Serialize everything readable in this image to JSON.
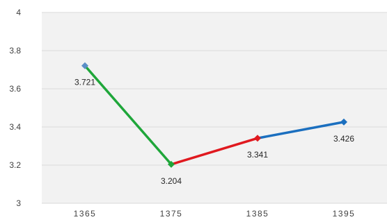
{
  "chart_data": {
    "type": "line",
    "x": [
      "1365",
      "1375",
      "1385",
      "1395"
    ],
    "values": [
      3.721,
      3.204,
      3.341,
      3.426
    ],
    "data_labels": [
      "3.721",
      "3.204",
      "3.341",
      "3.426"
    ],
    "ylim": [
      3,
      4
    ],
    "yticks": [
      "3",
      "3.2",
      "3.4",
      "3.6",
      "3.8",
      "4"
    ],
    "segment_colors": [
      "#1fa63a",
      "#e0191f",
      "#1b6fbf"
    ],
    "marker_colors": [
      "#5b8fc7",
      "#1fa63a",
      "#e0191f",
      "#1b6fbf"
    ],
    "grid": true,
    "title": "",
    "xlabel": "",
    "ylabel": ""
  }
}
